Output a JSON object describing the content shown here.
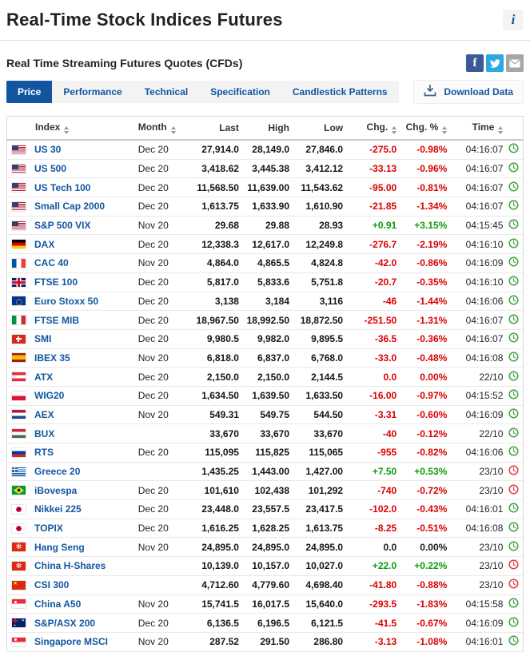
{
  "header": {
    "title": "Real-Time Stock Indices Futures",
    "subtitle": "Real Time Streaming Futures Quotes (CFDs)",
    "info_glyph": "i"
  },
  "social": {
    "facebook_glyph": "f",
    "twitter_icon": "twitter-bird",
    "email_icon": "envelope"
  },
  "tabs": [
    {
      "label": "Price",
      "active": true
    },
    {
      "label": "Performance",
      "active": false
    },
    {
      "label": "Technical",
      "active": false
    },
    {
      "label": "Specification",
      "active": false
    },
    {
      "label": "Candlestick Patterns",
      "active": false
    }
  ],
  "toolbar": {
    "download_label": "Download Data"
  },
  "colors": {
    "accent_blue": "#1256a0",
    "negative_red": "#dc0000",
    "positive_green": "#0e9c0e",
    "clock_open_green": "#4aa54a",
    "clock_closed_red": "#e04646"
  },
  "table": {
    "columns": [
      "Index",
      "Month",
      "Last",
      "High",
      "Low",
      "Chg.",
      "Chg. %",
      "Time"
    ],
    "rows": [
      {
        "flag": "us",
        "index": "US 30",
        "month": "Dec 20",
        "last": "27,914.0",
        "high": "28,149.0",
        "low": "27,846.0",
        "chg": "-275.0",
        "chg_pct": "-0.98%",
        "chg_color": "red",
        "time": "04:16:07",
        "clock": "green"
      },
      {
        "flag": "us",
        "index": "US 500",
        "month": "Dec 20",
        "last": "3,418.62",
        "high": "3,445.38",
        "low": "3,412.12",
        "chg": "-33.13",
        "chg_pct": "-0.96%",
        "chg_color": "red",
        "time": "04:16:07",
        "clock": "green"
      },
      {
        "flag": "us",
        "index": "US Tech 100",
        "month": "Dec 20",
        "last": "11,568.50",
        "high": "11,639.00",
        "low": "11,543.62",
        "chg": "-95.00",
        "chg_pct": "-0.81%",
        "chg_color": "red",
        "time": "04:16:07",
        "clock": "green"
      },
      {
        "flag": "us",
        "index": "Small Cap 2000",
        "month": "Dec 20",
        "last": "1,613.75",
        "high": "1,633.90",
        "low": "1,610.90",
        "chg": "-21.85",
        "chg_pct": "-1.34%",
        "chg_color": "red",
        "time": "04:16:07",
        "clock": "green"
      },
      {
        "flag": "us",
        "index": "S&P 500 VIX",
        "month": "Nov 20",
        "last": "29.68",
        "high": "29.88",
        "low": "28.93",
        "chg": "+0.91",
        "chg_pct": "+3.15%",
        "chg_color": "green",
        "time": "04:15:45",
        "clock": "green"
      },
      {
        "flag": "de",
        "index": "DAX",
        "month": "Dec 20",
        "last": "12,338.3",
        "high": "12,617.0",
        "low": "12,249.8",
        "chg": "-276.7",
        "chg_pct": "-2.19%",
        "chg_color": "red",
        "time": "04:16:10",
        "clock": "green"
      },
      {
        "flag": "fr",
        "index": "CAC 40",
        "month": "Nov 20",
        "last": "4,864.0",
        "high": "4,865.5",
        "low": "4,824.8",
        "chg": "-42.0",
        "chg_pct": "-0.86%",
        "chg_color": "red",
        "time": "04:16:09",
        "clock": "green"
      },
      {
        "flag": "gb",
        "index": "FTSE 100",
        "month": "Dec 20",
        "last": "5,817.0",
        "high": "5,833.6",
        "low": "5,751.8",
        "chg": "-20.7",
        "chg_pct": "-0.35%",
        "chg_color": "red",
        "time": "04:16:10",
        "clock": "green"
      },
      {
        "flag": "eu",
        "index": "Euro Stoxx 50",
        "month": "Dec 20",
        "last": "3,138",
        "high": "3,184",
        "low": "3,116",
        "chg": "-46",
        "chg_pct": "-1.44%",
        "chg_color": "red",
        "time": "04:16:06",
        "clock": "green"
      },
      {
        "flag": "it",
        "index": "FTSE MIB",
        "month": "Dec 20",
        "last": "18,967.50",
        "high": "18,992.50",
        "low": "18,872.50",
        "chg": "-251.50",
        "chg_pct": "-1.31%",
        "chg_color": "red",
        "time": "04:16:07",
        "clock": "green"
      },
      {
        "flag": "ch",
        "index": "SMI",
        "month": "Dec 20",
        "last": "9,980.5",
        "high": "9,982.0",
        "low": "9,895.5",
        "chg": "-36.5",
        "chg_pct": "-0.36%",
        "chg_color": "red",
        "time": "04:16:07",
        "clock": "green"
      },
      {
        "flag": "es",
        "index": "IBEX 35",
        "month": "Nov 20",
        "last": "6,818.0",
        "high": "6,837.0",
        "low": "6,768.0",
        "chg": "-33.0",
        "chg_pct": "-0.48%",
        "chg_color": "red",
        "time": "04:16:08",
        "clock": "green"
      },
      {
        "flag": "at",
        "index": "ATX",
        "month": "Dec 20",
        "last": "2,150.0",
        "high": "2,150.0",
        "low": "2,144.5",
        "chg": "0.0",
        "chg_pct": "0.00%",
        "chg_color": "red",
        "time": "22/10",
        "clock": "green"
      },
      {
        "flag": "pl",
        "index": "WIG20",
        "month": "Dec 20",
        "last": "1,634.50",
        "high": "1,639.50",
        "low": "1,633.50",
        "chg": "-16.00",
        "chg_pct": "-0.97%",
        "chg_color": "red",
        "time": "04:15:52",
        "clock": "green"
      },
      {
        "flag": "nl",
        "index": "AEX",
        "month": "Nov 20",
        "last": "549.31",
        "high": "549.75",
        "low": "544.50",
        "chg": "-3.31",
        "chg_pct": "-0.60%",
        "chg_color": "red",
        "time": "04:16:09",
        "clock": "green"
      },
      {
        "flag": "hu",
        "index": "BUX",
        "month": "",
        "last": "33,670",
        "high": "33,670",
        "low": "33,670",
        "chg": "-40",
        "chg_pct": "-0.12%",
        "chg_color": "red",
        "time": "22/10",
        "clock": "green"
      },
      {
        "flag": "ru",
        "index": "RTS",
        "month": "Dec 20",
        "last": "115,095",
        "high": "115,825",
        "low": "115,065",
        "chg": "-955",
        "chg_pct": "-0.82%",
        "chg_color": "red",
        "time": "04:16:06",
        "clock": "green"
      },
      {
        "flag": "gr",
        "index": "Greece 20",
        "month": "",
        "last": "1,435.25",
        "high": "1,443.00",
        "low": "1,427.00",
        "chg": "+7.50",
        "chg_pct": "+0.53%",
        "chg_color": "green",
        "time": "23/10",
        "clock": "red"
      },
      {
        "flag": "br",
        "index": "iBovespa",
        "month": "Dec 20",
        "last": "101,610",
        "high": "102,438",
        "low": "101,292",
        "chg": "-740",
        "chg_pct": "-0.72%",
        "chg_color": "red",
        "time": "23/10",
        "clock": "red"
      },
      {
        "flag": "jp",
        "index": "Nikkei 225",
        "month": "Dec 20",
        "last": "23,448.0",
        "high": "23,557.5",
        "low": "23,417.5",
        "chg": "-102.0",
        "chg_pct": "-0.43%",
        "chg_color": "red",
        "time": "04:16:01",
        "clock": "green"
      },
      {
        "flag": "jp",
        "index": "TOPIX",
        "month": "Dec 20",
        "last": "1,616.25",
        "high": "1,628.25",
        "low": "1,613.75",
        "chg": "-8.25",
        "chg_pct": "-0.51%",
        "chg_color": "red",
        "time": "04:16:08",
        "clock": "green"
      },
      {
        "flag": "hk",
        "index": "Hang Seng",
        "month": "Nov 20",
        "last": "24,895.0",
        "high": "24,895.0",
        "low": "24,895.0",
        "chg": "0.0",
        "chg_pct": "0.00%",
        "chg_color": "black",
        "time": "23/10",
        "clock": "green"
      },
      {
        "flag": "hk",
        "index": "China H-Shares",
        "month": "",
        "last": "10,139.0",
        "high": "10,157.0",
        "low": "10,027.0",
        "chg": "+22.0",
        "chg_pct": "+0.22%",
        "chg_color": "green",
        "time": "23/10",
        "clock": "red"
      },
      {
        "flag": "cn",
        "index": "CSI 300",
        "month": "",
        "last": "4,712.60",
        "high": "4,779.60",
        "low": "4,698.40",
        "chg": "-41.80",
        "chg_pct": "-0.88%",
        "chg_color": "red",
        "time": "23/10",
        "clock": "red"
      },
      {
        "flag": "sg",
        "index": "China A50",
        "month": "Nov 20",
        "last": "15,741.5",
        "high": "16,017.5",
        "low": "15,640.0",
        "chg": "-293.5",
        "chg_pct": "-1.83%",
        "chg_color": "red",
        "time": "04:15:58",
        "clock": "green"
      },
      {
        "flag": "au",
        "index": "S&P/ASX 200",
        "month": "Dec 20",
        "last": "6,136.5",
        "high": "6,196.5",
        "low": "6,121.5",
        "chg": "-41.5",
        "chg_pct": "-0.67%",
        "chg_color": "red",
        "time": "04:16:09",
        "clock": "green"
      },
      {
        "flag": "sg",
        "index": "Singapore MSCI",
        "month": "Nov 20",
        "last": "287.52",
        "high": "291.50",
        "low": "286.80",
        "chg": "-3.13",
        "chg_pct": "-1.08%",
        "chg_color": "red",
        "time": "04:16:01",
        "clock": "green"
      }
    ]
  }
}
